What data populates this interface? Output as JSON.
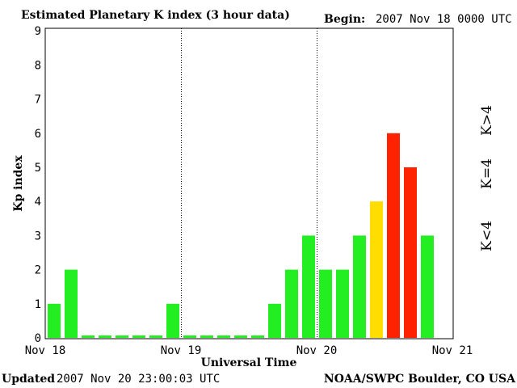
{
  "header": {
    "title": "Estimated Planetary K index (3 hour data)",
    "begin_label": "Begin:",
    "begin_value": "2007 Nov 18 0000 UTC"
  },
  "footer": {
    "updated_label": "Updated",
    "updated_value": "2007 Nov 20 23:00:03 UTC",
    "credit": "NOAA/SWPC Boulder, CO USA"
  },
  "legend": {
    "low": "K<4",
    "equal": "K=4",
    "high": "K>4"
  },
  "colors": {
    "low": "#22ee22",
    "equal": "#ffdd00",
    "high": "#ff2200",
    "axis": "#000000",
    "background": "#ffffff"
  },
  "chart_data": {
    "type": "bar",
    "title": "Estimated Planetary K index (3 hour data)",
    "xlabel": "Universal Time",
    "ylabel": "Kp index",
    "ylim": [
      0,
      9
    ],
    "yticks": [
      "0",
      "1",
      "2",
      "3",
      "4",
      "5",
      "6",
      "7",
      "8",
      "9"
    ],
    "xticks": [
      "Nov 18",
      "Nov 19",
      "Nov 20",
      "Nov 21"
    ],
    "interval_hours": 3,
    "day_separators": [
      "Nov 19",
      "Nov 20"
    ],
    "grid": false,
    "legend_position": "right",
    "values": [
      1,
      2,
      0,
      0,
      0,
      0,
      0,
      1,
      0,
      0,
      0,
      0,
      0,
      1,
      2,
      3,
      2,
      2,
      3,
      4,
      6,
      5,
      3
    ]
  }
}
